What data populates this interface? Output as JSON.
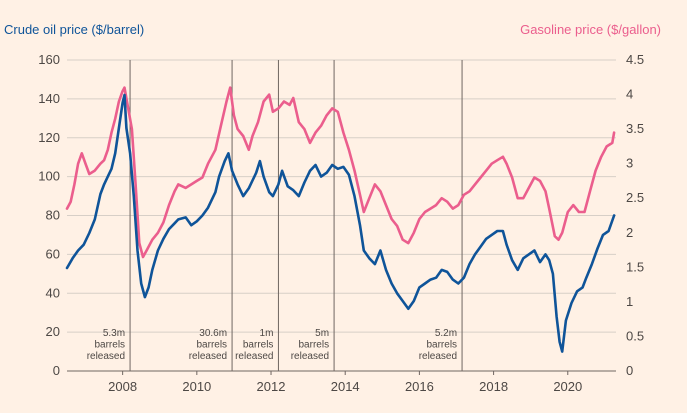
{
  "chart_data": {
    "type": "line",
    "title_left": "Crude oil price ($/barrel)",
    "title_right": "Gasoline price ($/gallon)",
    "x_ticks": [
      "2008",
      "2010",
      "2012",
      "2014",
      "2016",
      "2018",
      "2020"
    ],
    "x_range": [
      2007.0,
      2021.8
    ],
    "y_left": {
      "range": [
        0,
        160
      ],
      "ticks": [
        "0",
        "20",
        "40",
        "60",
        "80",
        "100",
        "120",
        "140",
        "160"
      ]
    },
    "y_right": {
      "range": [
        0,
        4.5
      ],
      "ticks": [
        "0",
        "0.5",
        "1",
        "1.5",
        "2",
        "2.5",
        "3",
        "3.5",
        "4",
        "4.5"
      ]
    },
    "grid": true,
    "colors": {
      "crude": "#0f5499",
      "gasoline": "#eb5e8d"
    },
    "events": [
      {
        "date": 2008.7,
        "lines": [
          "5.3m",
          "barrels",
          "released"
        ]
      },
      {
        "date": 2011.45,
        "lines": [
          "30.6m",
          "barrels",
          "released"
        ]
      },
      {
        "date": 2012.7,
        "lines": [
          "1m",
          "barrels",
          "released"
        ]
      },
      {
        "date": 2014.2,
        "lines": [
          "5m",
          "barrels",
          "released"
        ]
      },
      {
        "date": 2017.65,
        "lines": [
          "5.2m",
          "barrels",
          "released"
        ]
      }
    ],
    "series": [
      {
        "axis": "left",
        "x": [
          2007.0,
          2007.15,
          2007.3,
          2007.45,
          2007.6,
          2007.75,
          2007.9,
          2008.0,
          2008.1,
          2008.2,
          2008.3,
          2008.4,
          2008.5,
          2008.55,
          2008.6,
          2008.7,
          2008.8,
          2008.9,
          2009.0,
          2009.1,
          2009.2,
          2009.3,
          2009.45,
          2009.6,
          2009.75,
          2009.9,
          2010.0,
          2010.2,
          2010.35,
          2010.5,
          2010.65,
          2010.8,
          2011.0,
          2011.1,
          2011.25,
          2011.35,
          2011.45,
          2011.6,
          2011.75,
          2011.9,
          2012.0,
          2012.1,
          2012.2,
          2012.3,
          2012.45,
          2012.55,
          2012.7,
          2012.8,
          2012.95,
          2013.1,
          2013.25,
          2013.4,
          2013.55,
          2013.7,
          2013.85,
          2014.0,
          2014.15,
          2014.3,
          2014.45,
          2014.6,
          2014.75,
          2014.9,
          2015.0,
          2015.15,
          2015.3,
          2015.45,
          2015.6,
          2015.75,
          2015.9,
          2016.05,
          2016.2,
          2016.35,
          2016.5,
          2016.65,
          2016.8,
          2016.95,
          2017.1,
          2017.25,
          2017.4,
          2017.55,
          2017.7,
          2017.85,
          2018.0,
          2018.15,
          2018.3,
          2018.45,
          2018.6,
          2018.75,
          2018.85,
          2019.0,
          2019.15,
          2019.3,
          2019.45,
          2019.6,
          2019.75,
          2019.9,
          2020.0,
          2020.1,
          2020.2,
          2020.28,
          2020.35,
          2020.45,
          2020.6,
          2020.75,
          2020.9,
          2021.0,
          2021.15,
          2021.3,
          2021.45,
          2021.6,
          2021.75
        ],
        "values": [
          53,
          58,
          62,
          65,
          71,
          78,
          91,
          96,
          100,
          104,
          112,
          125,
          138,
          142,
          125,
          112,
          90,
          62,
          45,
          38,
          43,
          52,
          62,
          68,
          73,
          76,
          78,
          79,
          75,
          77,
          80,
          84,
          92,
          100,
          108,
          112,
          103,
          96,
          90,
          94,
          98,
          102,
          108,
          100,
          92,
          90,
          96,
          103,
          95,
          93,
          90,
          97,
          103,
          106,
          100,
          102,
          106,
          104,
          105,
          101,
          90,
          75,
          62,
          58,
          55,
          62,
          52,
          45,
          40,
          36,
          32,
          36,
          43,
          45,
          47,
          48,
          52,
          51,
          47,
          45,
          48,
          55,
          60,
          64,
          68,
          70,
          72,
          72,
          65,
          57,
          52,
          58,
          60,
          62,
          56,
          60,
          57,
          50,
          28,
          15,
          10,
          26,
          35,
          41,
          43,
          48,
          55,
          63,
          70,
          72,
          80
        ]
      },
      {
        "axis": "right",
        "x": [
          2007.0,
          2007.1,
          2007.2,
          2007.3,
          2007.4,
          2007.5,
          2007.6,
          2007.75,
          2007.9,
          2008.0,
          2008.1,
          2008.2,
          2008.3,
          2008.4,
          2008.5,
          2008.55,
          2008.65,
          2008.75,
          2008.85,
          2008.95,
          2009.05,
          2009.15,
          2009.3,
          2009.45,
          2009.6,
          2009.75,
          2009.9,
          2010.0,
          2010.2,
          2010.35,
          2010.5,
          2010.65,
          2010.8,
          2011.0,
          2011.15,
          2011.3,
          2011.4,
          2011.5,
          2011.6,
          2011.75,
          2011.9,
          2012.0,
          2012.15,
          2012.3,
          2012.45,
          2012.55,
          2012.7,
          2012.85,
          2013.0,
          2013.1,
          2013.25,
          2013.4,
          2013.55,
          2013.7,
          2013.85,
          2014.0,
          2014.15,
          2014.3,
          2014.45,
          2014.6,
          2014.75,
          2014.9,
          2015.0,
          2015.15,
          2015.3,
          2015.45,
          2015.6,
          2015.75,
          2015.9,
          2016.05,
          2016.2,
          2016.35,
          2016.5,
          2016.65,
          2016.8,
          2016.95,
          2017.1,
          2017.25,
          2017.4,
          2017.55,
          2017.7,
          2017.85,
          2018.0,
          2018.15,
          2018.3,
          2018.45,
          2018.6,
          2018.75,
          2018.85,
          2019.0,
          2019.15,
          2019.3,
          2019.45,
          2019.6,
          2019.75,
          2019.9,
          2020.0,
          2020.15,
          2020.25,
          2020.35,
          2020.5,
          2020.65,
          2020.8,
          2020.95,
          2021.1,
          2021.25,
          2021.4,
          2021.55,
          2021.7,
          2021.75
        ],
        "values": [
          2.35,
          2.45,
          2.7,
          3.0,
          3.15,
          3.0,
          2.85,
          2.9,
          3.0,
          3.05,
          3.2,
          3.45,
          3.65,
          3.9,
          4.05,
          4.1,
          3.8,
          3.5,
          2.7,
          1.85,
          1.65,
          1.75,
          1.9,
          2.0,
          2.15,
          2.4,
          2.6,
          2.7,
          2.65,
          2.7,
          2.75,
          2.8,
          3.0,
          3.2,
          3.55,
          3.9,
          4.1,
          3.7,
          3.5,
          3.4,
          3.2,
          3.4,
          3.6,
          3.9,
          4.0,
          3.75,
          3.8,
          3.9,
          3.85,
          3.95,
          3.6,
          3.5,
          3.3,
          3.45,
          3.55,
          3.7,
          3.8,
          3.75,
          3.45,
          3.2,
          2.9,
          2.55,
          2.3,
          2.5,
          2.7,
          2.6,
          2.4,
          2.2,
          2.1,
          1.9,
          1.85,
          2.0,
          2.2,
          2.3,
          2.35,
          2.4,
          2.5,
          2.45,
          2.35,
          2.4,
          2.55,
          2.6,
          2.7,
          2.8,
          2.9,
          3.0,
          3.05,
          3.1,
          3.0,
          2.8,
          2.5,
          2.5,
          2.65,
          2.8,
          2.75,
          2.6,
          2.35,
          1.95,
          1.9,
          2.0,
          2.3,
          2.4,
          2.3,
          2.3,
          2.6,
          2.9,
          3.1,
          3.25,
          3.3,
          3.45
        ]
      }
    ]
  }
}
